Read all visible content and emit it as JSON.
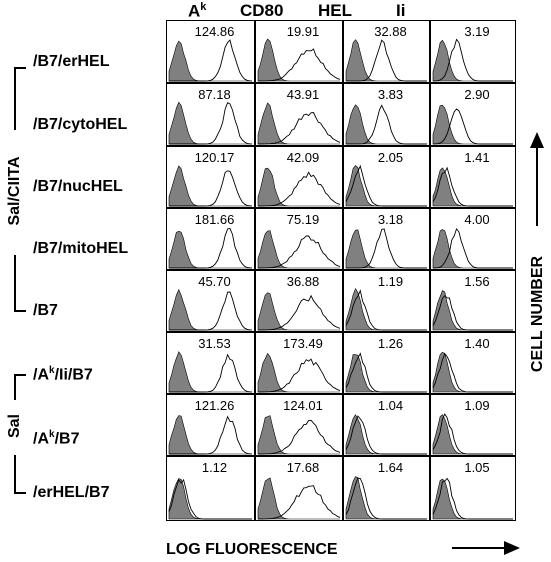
{
  "columns": [
    {
      "main": "A",
      "sup": "k"
    },
    {
      "main": "CD80",
      "sup": ""
    },
    {
      "main": "HEL",
      "sup": ""
    },
    {
      "main": "Ii",
      "sup": ""
    }
  ],
  "rows": [
    {
      "label": "/B7/erHEL",
      "sup": "",
      "tail": ""
    },
    {
      "label": "/B7/cytoHEL",
      "sup": "",
      "tail": ""
    },
    {
      "label": "/B7/nucHEL",
      "sup": "",
      "tail": ""
    },
    {
      "label": "/B7/mitoHEL",
      "sup": "",
      "tail": ""
    },
    {
      "label": "/B7",
      "sup": "",
      "tail": ""
    },
    {
      "label": "/A",
      "sup": "k",
      "tail": "/Ii/B7"
    },
    {
      "label": "/A",
      "sup": "k",
      "tail": "/B7"
    },
    {
      "label": "/erHEL/B7",
      "sup": "",
      "tail": ""
    }
  ],
  "values": [
    [
      "124.86",
      "19.91",
      "32.88",
      "3.19"
    ],
    [
      "87.18",
      "43.91",
      "3.83",
      "2.90"
    ],
    [
      "120.17",
      "42.09",
      "2.05",
      "1.41"
    ],
    [
      "181.66",
      "75.19",
      "3.18",
      "4.00"
    ],
    [
      "45.70",
      "36.88",
      "1.19",
      "1.56"
    ],
    [
      "31.53",
      "173.49",
      "1.26",
      "1.40"
    ],
    [
      "121.26",
      "124.01",
      "1.04",
      "1.09"
    ],
    [
      "1.12",
      "17.68",
      "1.64",
      "1.05"
    ]
  ],
  "groups": {
    "sal_ciita": "Sal/CIITA",
    "sal": "Sal"
  },
  "axes": {
    "x_label": "LOG FLUORESCENCE",
    "y_label": "CELL NUMBER"
  },
  "colors": {
    "filled_histogram": "#808080",
    "line": "#000000",
    "background": "#ffffff"
  }
}
